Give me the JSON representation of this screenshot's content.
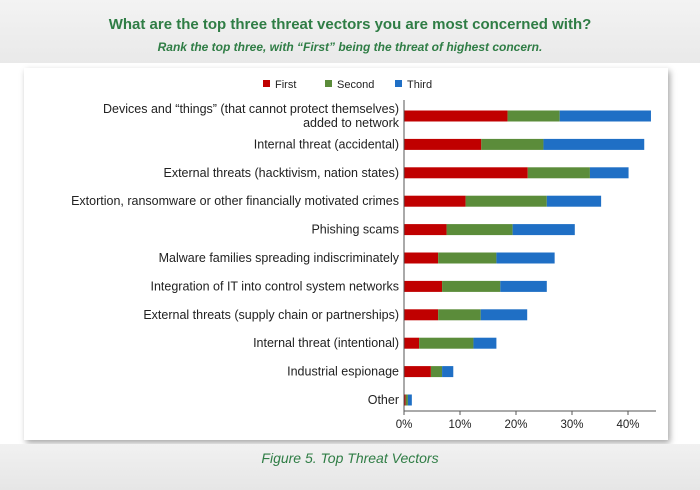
{
  "header": {
    "title": "What are the top three threat vectors you are most concerned with?",
    "subtitle": "Rank the top three, with “First” being the threat of highest concern."
  },
  "caption": "Figure 5. Top Threat Vectors",
  "chart_data": {
    "type": "bar",
    "orientation": "horizontal",
    "stacked": true,
    "categories": [
      [
        "Devices and “things” (that cannot protect themselves)",
        "added to network"
      ],
      [
        "Internal threat (accidental)"
      ],
      [
        "External threats (hacktivism, nation states)"
      ],
      [
        "Extortion, ransomware or other financially motivated crimes"
      ],
      [
        "Phishing scams"
      ],
      [
        "Malware families spreading indiscriminately"
      ],
      [
        "Integration of IT into control system networks"
      ],
      [
        "External threats (supply chain or partnerships)"
      ],
      [
        "Internal threat (intentional)"
      ],
      [
        "Industrial espionage"
      ],
      [
        "Other"
      ]
    ],
    "series": [
      {
        "name": "First",
        "color": "#c00000",
        "values": [
          18.5,
          13.8,
          22.1,
          11.0,
          7.6,
          6.1,
          6.8,
          6.1,
          2.7,
          4.8,
          0.3
        ]
      },
      {
        "name": "Second",
        "color": "#5b8c3a",
        "values": [
          9.3,
          11.1,
          11.1,
          14.5,
          11.8,
          10.4,
          10.4,
          7.6,
          9.7,
          2.0,
          0.4
        ]
      },
      {
        "name": "Third",
        "color": "#1f6fc5",
        "values": [
          16.3,
          18.0,
          6.9,
          9.7,
          11.1,
          10.4,
          8.3,
          8.3,
          4.1,
          2.0,
          0.7
        ]
      }
    ],
    "xlim": [
      0,
      45
    ],
    "xticks": [
      "0%",
      "10%",
      "20%",
      "30%",
      "40%"
    ],
    "xtick_values": [
      0,
      10,
      20,
      30,
      40
    ],
    "legend": [
      "First",
      "Second",
      "Third"
    ],
    "legend_position": "top",
    "grid": false
  }
}
